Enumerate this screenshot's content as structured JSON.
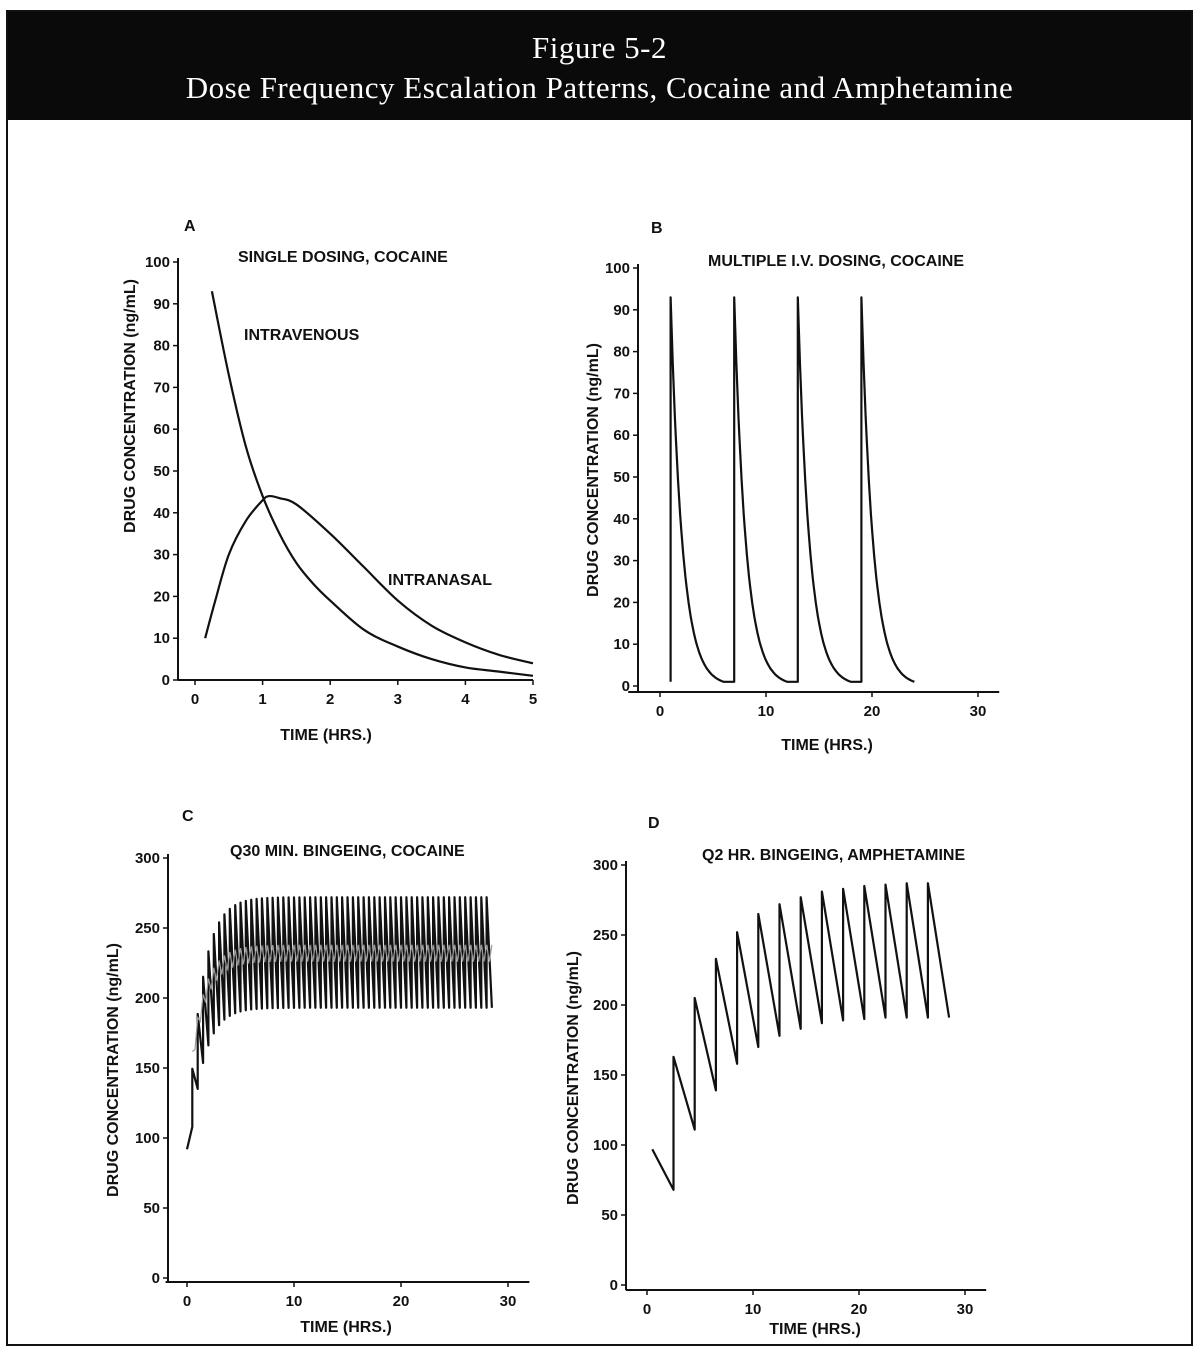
{
  "figure": {
    "number": "Figure 5-2",
    "title": "Dose Frequency Escalation Patterns, Cocaine and Amphetamine"
  },
  "chart_data": [
    {
      "panel": "A",
      "type": "line",
      "title": "SINGLE DOSING, COCAINE",
      "xlabel": "TIME (HRS.)",
      "ylabel": "DRUG CONCENTRATION (ng/mL)",
      "xlim": [
        0,
        5
      ],
      "ylim": [
        0,
        100
      ],
      "xticks": [
        0,
        1,
        2,
        3,
        4,
        5
      ],
      "yticks": [
        0,
        10,
        20,
        30,
        40,
        50,
        60,
        70,
        80,
        90,
        100
      ],
      "series": [
        {
          "name": "INTRAVENOUS",
          "x": [
            0.25,
            0.5,
            0.75,
            1.0,
            1.25,
            1.5,
            1.75,
            2.0,
            2.5,
            3.0,
            3.5,
            4.0,
            4.5,
            5.0
          ],
          "y": [
            93,
            73,
            56,
            44,
            35,
            28,
            23,
            19,
            12,
            8,
            5,
            3,
            2,
            1
          ]
        },
        {
          "name": "INTRANASAL",
          "x": [
            0.15,
            0.3,
            0.5,
            0.75,
            1.0,
            1.1,
            1.25,
            1.5,
            2.0,
            2.5,
            3.0,
            3.5,
            4.0,
            4.5,
            5.0
          ],
          "y": [
            10,
            19,
            30,
            38,
            43,
            44,
            43.5,
            42,
            35,
            27,
            19,
            13,
            9,
            6,
            4
          ]
        }
      ]
    },
    {
      "panel": "B",
      "type": "line",
      "title": "MULTIPLE I.V. DOSING, COCAINE",
      "xlabel": "TIME (HRS.)",
      "ylabel": "DRUG CONCENTRATION (ng/mL)",
      "xlim": [
        -3,
        32
      ],
      "ylim": [
        0,
        100
      ],
      "xticks": [
        0,
        10,
        20,
        30
      ],
      "yticks": [
        0,
        10,
        20,
        30,
        40,
        50,
        60,
        70,
        80,
        90,
        100
      ],
      "dose_times": [
        1,
        7,
        13,
        19
      ],
      "peak": 93,
      "trough": 1,
      "end_time": 24
    },
    {
      "panel": "C",
      "type": "line",
      "title": "Q30 MIN. BINGEING, COCAINE",
      "xlabel": "TIME (HRS.)",
      "ylabel": "DRUG CONCENTRATION (ng/mL)",
      "xlim": [
        -2,
        32
      ],
      "ylim": [
        0,
        300
      ],
      "xticks": [
        0,
        10,
        20,
        30
      ],
      "yticks": [
        0,
        50,
        100,
        150,
        200,
        250,
        300
      ],
      "dose_interval_hrs": 0.5,
      "start": 0,
      "end": 28.5,
      "initial_value": 92,
      "steady_peak": 272,
      "steady_trough": 193,
      "steady_mean": 232
    },
    {
      "panel": "D",
      "type": "line",
      "title": "Q2 HR. BINGEING, AMPHETAMINE",
      "xlabel": "TIME (HRS.)",
      "ylabel": "DRUG CONCENTRATION (ng/mL)",
      "xlim": [
        -2,
        32
      ],
      "ylim": [
        0,
        300
      ],
      "xticks": [
        0,
        10,
        20,
        30
      ],
      "yticks": [
        0,
        50,
        100,
        150,
        200,
        250,
        300
      ],
      "x": [
        0.5,
        2.5,
        2.5,
        4.5,
        4.5,
        6.5,
        6.5,
        8.5,
        8.5,
        10.5,
        10.5,
        12.5,
        12.5,
        14.5,
        14.5,
        16.5,
        16.5,
        18.5,
        18.5,
        20.5,
        20.5,
        22.5,
        22.5,
        24.5,
        24.5,
        26.5,
        26.5,
        28.5
      ],
      "y": [
        97,
        68,
        163,
        111,
        205,
        139,
        233,
        158,
        252,
        170,
        265,
        178,
        272,
        183,
        277,
        187,
        281,
        189,
        283,
        190,
        285,
        191,
        286,
        191,
        287,
        191,
        287,
        191
      ]
    }
  ]
}
